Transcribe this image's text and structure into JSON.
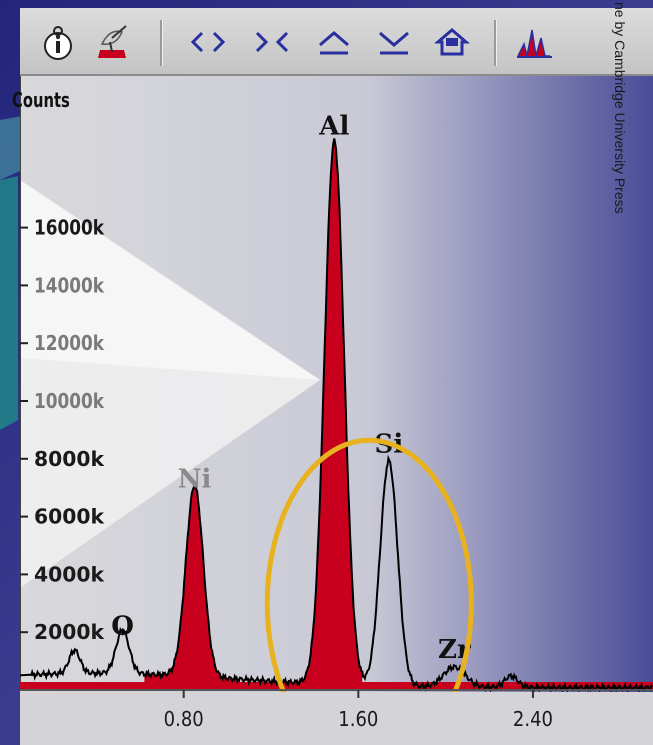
{
  "toolbar": {
    "icons": [
      "info-icon",
      "satellite-dish-icon",
      "expand-icon",
      "contract-icon",
      "peak-up-icon",
      "peak-down-icon",
      "home-icon",
      "spectrum-icon"
    ]
  },
  "credit": "ne by Cambridge University Press",
  "chart_data": {
    "type": "line",
    "title": "",
    "xlabel": "",
    "ylabel": "Counts",
    "xlim": [
      0.05,
      2.95
    ],
    "ylim": [
      0,
      20000
    ],
    "x_ticks": [
      "0.80",
      "1.60",
      "2.40"
    ],
    "x_tick_values": [
      0.8,
      1.6,
      2.4
    ],
    "y_ticks": [
      "2000k",
      "4000k",
      "6000k",
      "8000k",
      "10000k",
      "12000k",
      "14000k",
      "16000k"
    ],
    "y_tick_values": [
      2000,
      4000,
      6000,
      8000,
      10000,
      12000,
      14000,
      16000
    ],
    "series": [
      {
        "peaks": [
          {
            "label": "O",
            "x": 0.52,
            "height": 1500
          },
          {
            "label": "Ni",
            "x": 0.85,
            "height": 6600
          },
          {
            "label": "Al",
            "x": 1.49,
            "height": 18800
          },
          {
            "label": "Si",
            "x": 1.74,
            "height": 7800
          },
          {
            "label": "Zr",
            "x": 2.04,
            "height": 700
          }
        ]
      }
    ],
    "background_count": 500,
    "highlight": {
      "center_x": 1.65,
      "center_y": 3000,
      "labels_inside": [
        "Si",
        "Zr"
      ]
    },
    "colors": {
      "fill": "#c8001e",
      "overlay": "#f2b9a0",
      "line": "#000000",
      "highlight": "#e8b21f"
    },
    "grid": false
  }
}
